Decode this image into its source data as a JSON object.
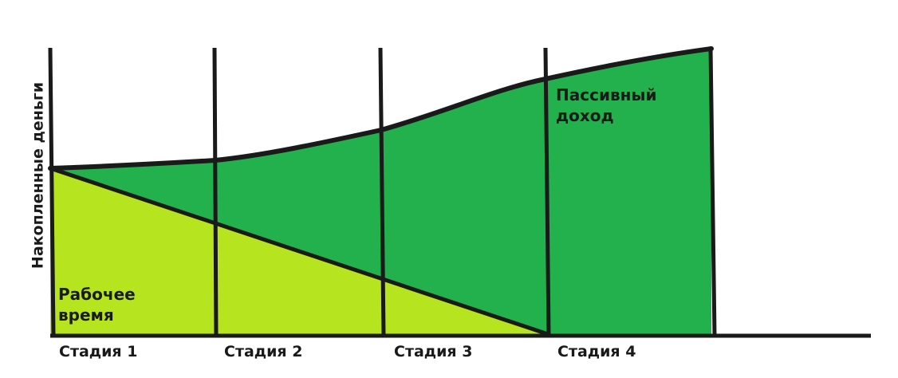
{
  "diagram": {
    "y_axis_label": "Накопленные деньги",
    "stages": [
      "Стадия 1",
      "Стадия 2",
      "Стадия 3",
      "Стадия 4"
    ],
    "work_time_label": [
      "Рабочее",
      "время"
    ],
    "passive_income_label": [
      "Пассивный",
      "доход"
    ],
    "colors": {
      "work_time_fill": "#b6e51f",
      "passive_income_fill": "#23b14d",
      "lines": "#1a1a1a",
      "background": "#ffffff"
    }
  }
}
